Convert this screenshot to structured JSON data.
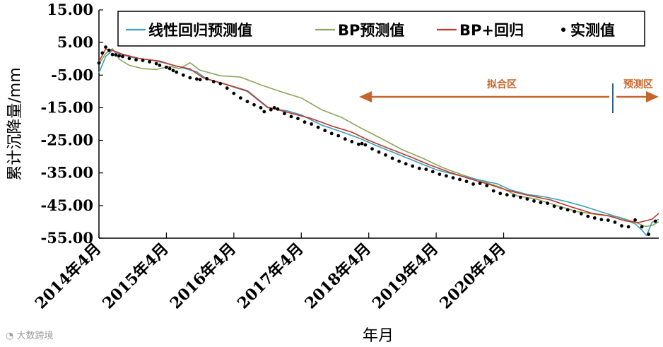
{
  "chart_data": {
    "type": "line",
    "xlabel": "年月",
    "ylabel": "累计沉降量/mm",
    "ylim": [
      -55,
      15
    ],
    "yticks": [
      "15.00",
      "5.00",
      "-5.00",
      "-15.00",
      "-25.00",
      "-35.00",
      "-45.00",
      "-55.00"
    ],
    "xticks": [
      "2014年4月",
      "2015年4月",
      "2016年4月",
      "2017年4月",
      "2018年4月",
      "2019年4月",
      "2020年4月"
    ],
    "legend_position": "top",
    "colors": {
      "linear": "#3a9fc0",
      "bp": "#8aa65a",
      "bp_reg": "#c0392b",
      "measured": "#000000",
      "region": "#c8642a"
    },
    "annotations": {
      "fit_region": "拟合区",
      "predict_region": "预测区"
    },
    "series": [
      {
        "name": "线性回归预测值",
        "style": "line",
        "values": [
          [
            0.0,
            -4.3
          ],
          [
            0.1,
            0.7
          ],
          [
            0.2,
            2.6
          ],
          [
            0.3,
            1.5
          ],
          [
            0.5,
            0.4
          ],
          [
            0.8,
            -0.5
          ],
          [
            1.0,
            -1.4
          ],
          [
            1.2,
            -2.5
          ],
          [
            1.45,
            -4.0
          ],
          [
            1.6,
            -6.2
          ],
          [
            1.9,
            -8.0
          ],
          [
            2.2,
            -10.0
          ],
          [
            2.5,
            -15.0
          ],
          [
            2.8,
            -16.0
          ],
          [
            3.0,
            -17.2
          ],
          [
            3.3,
            -20.3
          ],
          [
            3.6,
            -22.4
          ],
          [
            3.85,
            -24.3
          ],
          [
            4.1,
            -26.5
          ],
          [
            4.4,
            -29.0
          ],
          [
            4.7,
            -31.5
          ],
          [
            5.0,
            -34.0
          ],
          [
            5.3,
            -35.6
          ],
          [
            5.6,
            -37.0
          ],
          [
            5.9,
            -38.3
          ],
          [
            6.1,
            -40.2
          ],
          [
            6.35,
            -41.6
          ],
          [
            6.6,
            -42.3
          ],
          [
            6.9,
            -43.6
          ],
          [
            7.2,
            -45.3
          ],
          [
            7.5,
            -47.3
          ],
          [
            7.75,
            -48.9
          ],
          [
            7.95,
            -50.6
          ],
          [
            8.05,
            -52.5
          ],
          [
            8.12,
            -54.2
          ],
          [
            8.2,
            -50.1
          ],
          [
            8.3,
            -49.2
          ]
        ]
      },
      {
        "name": "BP预测值",
        "style": "line",
        "values": [
          [
            0.0,
            -1.6
          ],
          [
            0.1,
            1.6
          ],
          [
            0.2,
            3.1
          ],
          [
            0.3,
            -0.1
          ],
          [
            0.45,
            -2.0
          ],
          [
            0.65,
            -3.0
          ],
          [
            0.85,
            -3.3
          ],
          [
            1.05,
            -2.3
          ],
          [
            1.2,
            -3.0
          ],
          [
            1.35,
            -1.2
          ],
          [
            1.5,
            -3.5
          ],
          [
            1.8,
            -5.2
          ],
          [
            2.1,
            -5.6
          ],
          [
            2.4,
            -8.0
          ],
          [
            2.7,
            -10.1
          ],
          [
            3.0,
            -12.0
          ],
          [
            3.3,
            -15.6
          ],
          [
            3.6,
            -18.0
          ],
          [
            3.9,
            -21.4
          ],
          [
            4.2,
            -24.6
          ],
          [
            4.5,
            -27.9
          ],
          [
            4.8,
            -30.5
          ],
          [
            5.1,
            -33.4
          ],
          [
            5.4,
            -35.7
          ],
          [
            5.7,
            -37.6
          ],
          [
            5.95,
            -39.4
          ],
          [
            6.2,
            -42.0
          ],
          [
            6.5,
            -43.1
          ],
          [
            6.8,
            -45.1
          ],
          [
            7.1,
            -46.9
          ],
          [
            7.4,
            -47.8
          ],
          [
            7.7,
            -48.5
          ],
          [
            7.95,
            -50.1
          ],
          [
            8.1,
            -51.4
          ],
          [
            8.2,
            -51.1
          ],
          [
            8.3,
            -50.0
          ]
        ]
      },
      {
        "name": "BP+回归",
        "style": "line",
        "values": [
          [
            0.0,
            -0.8
          ],
          [
            0.1,
            3.0
          ],
          [
            0.2,
            2.6
          ],
          [
            0.35,
            1.4
          ],
          [
            0.6,
            0.1
          ],
          [
            0.9,
            -0.7
          ],
          [
            1.1,
            -2.0
          ],
          [
            1.35,
            -3.1
          ],
          [
            1.55,
            -5.9
          ],
          [
            1.85,
            -7.6
          ],
          [
            2.2,
            -9.8
          ],
          [
            2.5,
            -14.8
          ],
          [
            2.85,
            -16.7
          ],
          [
            3.15,
            -18.3
          ],
          [
            3.45,
            -20.6
          ],
          [
            3.75,
            -22.5
          ],
          [
            4.0,
            -25.0
          ],
          [
            4.3,
            -27.5
          ],
          [
            4.6,
            -29.9
          ],
          [
            4.9,
            -32.5
          ],
          [
            5.2,
            -34.8
          ],
          [
            5.5,
            -36.8
          ],
          [
            5.8,
            -38.6
          ],
          [
            6.05,
            -40.3
          ],
          [
            6.35,
            -41.8
          ],
          [
            6.7,
            -43.3
          ],
          [
            7.0,
            -45.4
          ],
          [
            7.3,
            -47.3
          ],
          [
            7.55,
            -48.1
          ],
          [
            7.8,
            -49.7
          ],
          [
            8.0,
            -50.2
          ],
          [
            8.2,
            -49.2
          ],
          [
            8.3,
            -47.4
          ]
        ]
      },
      {
        "name": "实测值",
        "style": "scatter",
        "values": [
          [
            0.0,
            -1.3
          ],
          [
            0.05,
            1.8
          ],
          [
            0.1,
            3.6
          ],
          [
            0.15,
            2.6
          ],
          [
            0.2,
            1.3
          ],
          [
            0.25,
            1.2
          ],
          [
            0.3,
            0.9
          ],
          [
            0.35,
            0.7
          ],
          [
            0.45,
            0.1
          ],
          [
            0.55,
            -0.3
          ],
          [
            0.65,
            -0.5
          ],
          [
            0.75,
            -0.9
          ],
          [
            0.85,
            -1.5
          ],
          [
            0.9,
            -2.0
          ],
          [
            1.0,
            -2.6
          ],
          [
            1.05,
            -3.0
          ],
          [
            1.1,
            -3.6
          ],
          [
            1.15,
            -4.1
          ],
          [
            1.25,
            -5.0
          ],
          [
            1.35,
            -5.8
          ],
          [
            1.45,
            -6.2
          ],
          [
            1.5,
            -6.4
          ],
          [
            1.6,
            -6.1
          ],
          [
            1.7,
            -7.0
          ],
          [
            1.8,
            -7.6
          ],
          [
            1.9,
            -9.0
          ],
          [
            2.0,
            -10.6
          ],
          [
            2.1,
            -12.0
          ],
          [
            2.2,
            -13.1
          ],
          [
            2.3,
            -14.1
          ],
          [
            2.4,
            -15.0
          ],
          [
            2.45,
            -16.2
          ],
          [
            2.55,
            -15.6
          ],
          [
            2.6,
            -15.0
          ],
          [
            2.65,
            -15.4
          ],
          [
            2.75,
            -16.8
          ],
          [
            2.85,
            -17.7
          ],
          [
            2.95,
            -18.3
          ],
          [
            3.05,
            -19.4
          ],
          [
            3.15,
            -20.0
          ],
          [
            3.25,
            -21.0
          ],
          [
            3.35,
            -22.0
          ],
          [
            3.45,
            -22.9
          ],
          [
            3.55,
            -23.6
          ],
          [
            3.65,
            -24.6
          ],
          [
            3.75,
            -25.4
          ],
          [
            3.85,
            -26.2
          ],
          [
            3.9,
            -26.0
          ],
          [
            3.95,
            -26.4
          ],
          [
            4.05,
            -27.6
          ],
          [
            4.15,
            -28.6
          ],
          [
            4.25,
            -29.5
          ],
          [
            4.35,
            -30.5
          ],
          [
            4.45,
            -31.4
          ],
          [
            4.55,
            -32.2
          ],
          [
            4.65,
            -32.9
          ],
          [
            4.75,
            -33.6
          ],
          [
            4.85,
            -33.9
          ],
          [
            4.95,
            -34.6
          ],
          [
            5.05,
            -35.4
          ],
          [
            5.15,
            -35.9
          ],
          [
            5.25,
            -36.5
          ],
          [
            5.35,
            -37.0
          ],
          [
            5.45,
            -37.6
          ],
          [
            5.55,
            -38.4
          ],
          [
            5.65,
            -38.2
          ],
          [
            5.75,
            -38.9
          ],
          [
            5.85,
            -40.5
          ],
          [
            5.95,
            -41.3
          ],
          [
            6.05,
            -41.7
          ],
          [
            6.15,
            -42.0
          ],
          [
            6.25,
            -42.5
          ],
          [
            6.35,
            -43.0
          ],
          [
            6.45,
            -43.6
          ],
          [
            6.55,
            -44.1
          ],
          [
            6.65,
            -44.3
          ],
          [
            6.75,
            -45.2
          ],
          [
            6.85,
            -45.8
          ],
          [
            6.95,
            -46.3
          ],
          [
            7.05,
            -46.8
          ],
          [
            7.15,
            -47.5
          ],
          [
            7.25,
            -48.3
          ],
          [
            7.35,
            -48.8
          ],
          [
            7.45,
            -49.3
          ],
          [
            7.55,
            -49.5
          ],
          [
            7.65,
            -50.1
          ],
          [
            7.75,
            -51.2
          ],
          [
            7.85,
            -51.5
          ],
          [
            7.95,
            -49.4
          ],
          [
            8.05,
            -51.5
          ],
          [
            8.15,
            -53.8
          ],
          [
            8.25,
            -49.8
          ]
        ]
      }
    ]
  },
  "watermark": "大数跨境"
}
